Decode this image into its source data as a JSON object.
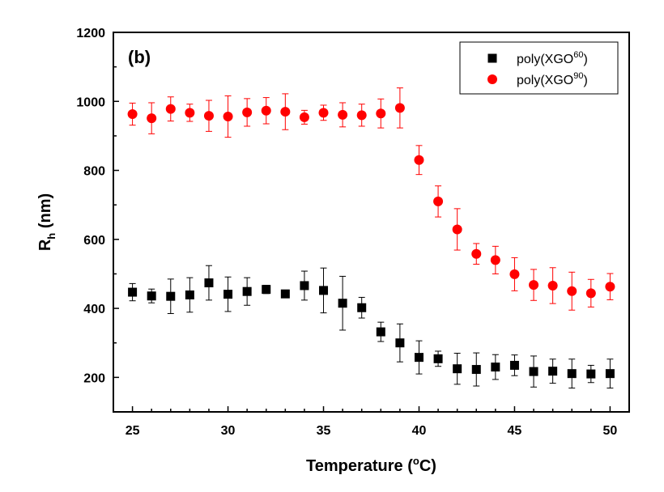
{
  "chart_data": {
    "type": "scatter",
    "panel_label": "(b)",
    "xlabel": {
      "main": "Temperature (",
      "sup": "o",
      "tail": "C)"
    },
    "ylabel": {
      "main": "R",
      "sub": "h",
      "tail": " (nm)"
    },
    "xlim": [
      24,
      51
    ],
    "ylim": [
      100,
      1200
    ],
    "xticks": [
      25,
      30,
      35,
      40,
      45,
      50
    ],
    "yticks": [
      200,
      400,
      600,
      800,
      1000,
      1200
    ],
    "x": [
      25,
      26,
      27,
      28,
      29,
      30,
      31,
      32,
      33,
      34,
      35,
      36,
      37,
      38,
      39,
      40,
      41,
      42,
      43,
      44,
      45,
      46,
      47,
      48,
      49,
      50
    ],
    "legend_position": "top-right",
    "series": [
      {
        "name": "poly(XGO60)",
        "legend": {
          "main": "poly(XGO",
          "sup": "60",
          "tail": ")"
        },
        "marker": "square",
        "color": "#000000",
        "values": [
          447,
          436,
          435,
          439,
          474,
          441,
          449,
          455,
          442,
          466,
          452,
          415,
          402,
          332,
          300,
          258,
          254,
          225,
          223,
          230,
          235,
          217,
          218,
          211,
          210,
          211
        ],
        "errors": [
          25,
          20,
          50,
          50,
          50,
          50,
          40,
          12,
          8,
          42,
          65,
          78,
          30,
          28,
          55,
          48,
          22,
          45,
          48,
          36,
          30,
          45,
          35,
          42,
          25,
          42
        ]
      },
      {
        "name": "poly(XGO90)",
        "legend": {
          "main": "poly(XGO",
          "sup": "90",
          "tail": ")"
        },
        "marker": "circle",
        "color": "#ff0000",
        "values": [
          963,
          951,
          978,
          967,
          958,
          956,
          968,
          973,
          970,
          954,
          967,
          961,
          960,
          965,
          981,
          830,
          710,
          629,
          558,
          540,
          499,
          468,
          466,
          450,
          444,
          463
        ],
        "errors": [
          32,
          45,
          35,
          25,
          45,
          60,
          40,
          38,
          52,
          20,
          22,
          35,
          32,
          42,
          58,
          42,
          45,
          60,
          30,
          40,
          48,
          45,
          52,
          55,
          40,
          38
        ]
      }
    ]
  }
}
